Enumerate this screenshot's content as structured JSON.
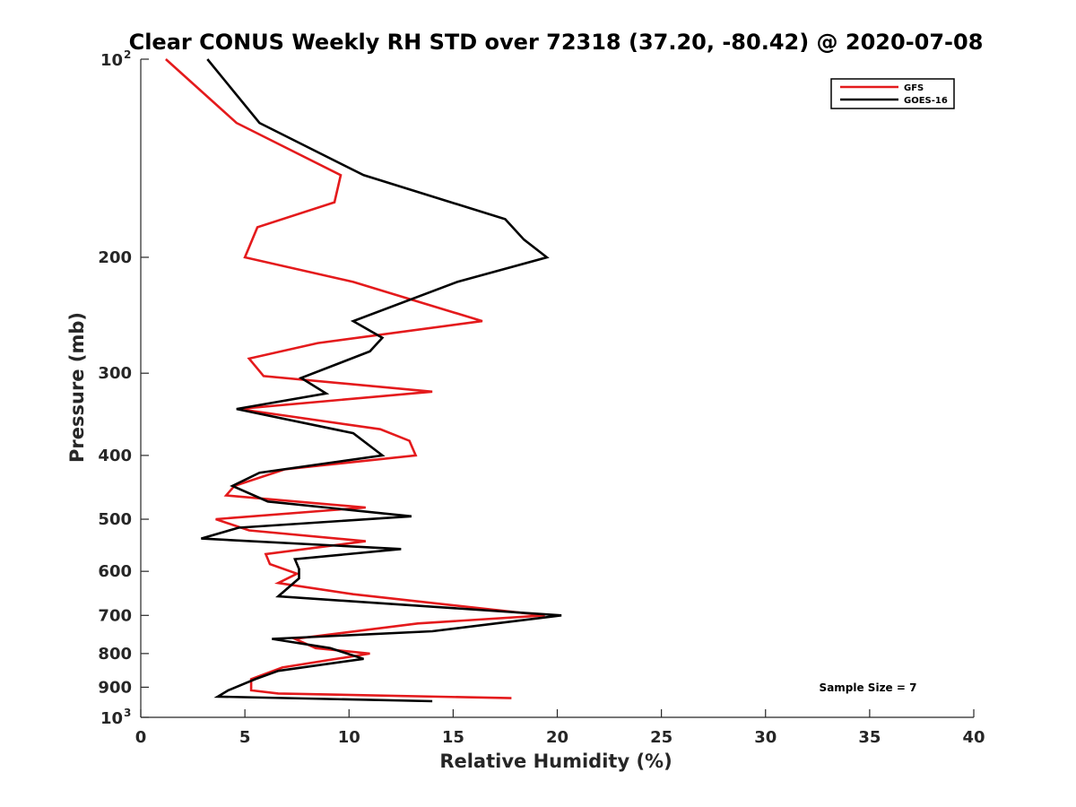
{
  "chart_data": {
    "type": "line",
    "title": "Clear CONUS Weekly RH STD over 72318 (37.20, -80.42) @ 2020-07-08",
    "xlabel": "Relative Humidity (%)",
    "ylabel": "Pressure (mb)",
    "xlim": [
      0,
      40
    ],
    "ylim": [
      100,
      1000
    ],
    "y_scale": "log",
    "y_reversed": true,
    "grid": false,
    "legend_position": "top-right",
    "x_ticks": [
      "0",
      "5",
      "10",
      "15",
      "20",
      "25",
      "30",
      "35",
      "40"
    ],
    "y_ticks": [
      {
        "value": 100,
        "base": "10",
        "exp": "2"
      },
      {
        "value": 200,
        "label": "200"
      },
      {
        "value": 300,
        "label": "300"
      },
      {
        "value": 400,
        "label": "400"
      },
      {
        "value": 500,
        "label": "500"
      },
      {
        "value": 600,
        "label": "600"
      },
      {
        "value": 700,
        "label": "700"
      },
      {
        "value": 800,
        "label": "800"
      },
      {
        "value": 900,
        "label": "900"
      },
      {
        "value": 1000,
        "base": "10",
        "exp": "3"
      }
    ],
    "series": [
      {
        "name": "GFS",
        "color": "#e41a1c",
        "points": [
          [
            1.2,
            100
          ],
          [
            4.6,
            125
          ],
          [
            9.6,
            150
          ],
          [
            9.3,
            165
          ],
          [
            5.6,
            180
          ],
          [
            5.0,
            200
          ],
          [
            10.2,
            218
          ],
          [
            16.4,
            250
          ],
          [
            8.5,
            270
          ],
          [
            5.2,
            285
          ],
          [
            5.9,
            303
          ],
          [
            14.0,
            320
          ],
          [
            4.7,
            340
          ],
          [
            11.5,
            365
          ],
          [
            12.9,
            380
          ],
          [
            13.2,
            400
          ],
          [
            6.9,
            420
          ],
          [
            4.5,
            445
          ],
          [
            4.1,
            460
          ],
          [
            10.8,
            480
          ],
          [
            3.6,
            500
          ],
          [
            5.2,
            520
          ],
          [
            10.8,
            540
          ],
          [
            6.0,
            565
          ],
          [
            6.2,
            585
          ],
          [
            7.5,
            605
          ],
          [
            6.6,
            625
          ],
          [
            10.2,
            650
          ],
          [
            19.4,
            700
          ],
          [
            13.3,
            720
          ],
          [
            7.4,
            760
          ],
          [
            8.4,
            785
          ],
          [
            11.0,
            800
          ],
          [
            6.8,
            840
          ],
          [
            5.3,
            875
          ],
          [
            5.3,
            910
          ],
          [
            6.6,
            920
          ],
          [
            17.8,
            935
          ]
        ]
      },
      {
        "name": "GOES-16",
        "color": "#000000",
        "points": [
          [
            3.2,
            100
          ],
          [
            5.7,
            125
          ],
          [
            10.7,
            150
          ],
          [
            17.5,
            175
          ],
          [
            18.4,
            188
          ],
          [
            19.5,
            200
          ],
          [
            15.2,
            218
          ],
          [
            10.2,
            250
          ],
          [
            11.6,
            265
          ],
          [
            11.0,
            278
          ],
          [
            7.7,
            305
          ],
          [
            8.9,
            322
          ],
          [
            4.6,
            340
          ],
          [
            10.2,
            370
          ],
          [
            11.6,
            400
          ],
          [
            5.7,
            425
          ],
          [
            4.4,
            445
          ],
          [
            6.1,
            470
          ],
          [
            13.0,
            495
          ],
          [
            4.7,
            515
          ],
          [
            2.9,
            535
          ],
          [
            12.5,
            555
          ],
          [
            7.4,
            575
          ],
          [
            7.6,
            595
          ],
          [
            7.6,
            615
          ],
          [
            6.6,
            655
          ],
          [
            20.2,
            700
          ],
          [
            14.0,
            740
          ],
          [
            6.3,
            760
          ],
          [
            9.1,
            785
          ],
          [
            10.7,
            815
          ],
          [
            6.6,
            850
          ],
          [
            5.5,
            875
          ],
          [
            4.2,
            910
          ],
          [
            3.7,
            930
          ],
          [
            14.0,
            945
          ]
        ]
      }
    ],
    "annotations": [
      {
        "text": "Sample Size = 7"
      }
    ]
  }
}
